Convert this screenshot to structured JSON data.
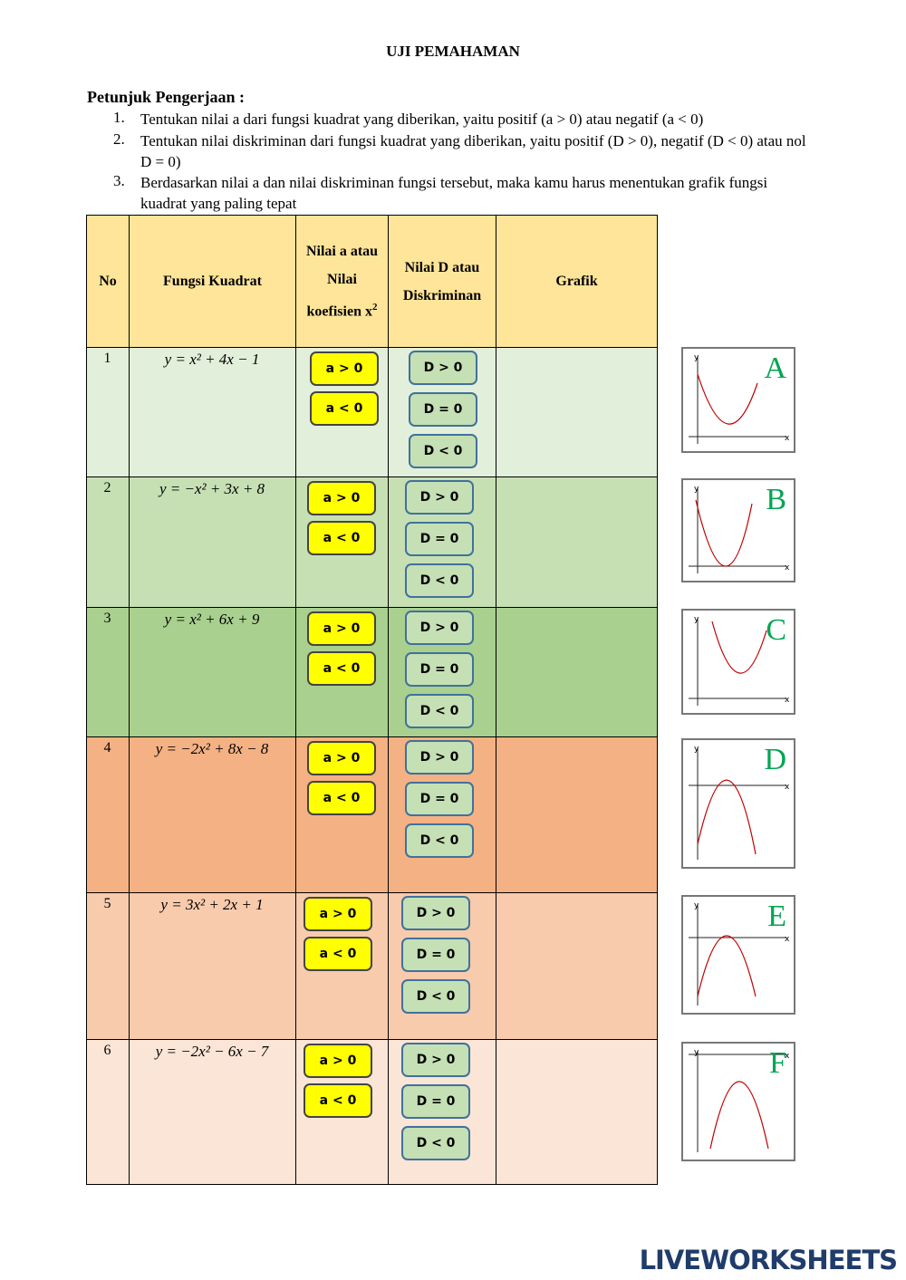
{
  "title": "UJI PEMAHAMAN",
  "instructions": {
    "heading": "Petunjuk Pengerjaan :",
    "items": [
      {
        "number": "1.",
        "text": "Tentukan nilai a dari fungsi kuadrat yang diberikan, yaitu positif (a > 0) atau negatif (a < 0)"
      },
      {
        "number": "2.",
        "text": "Tentukan nilai diskriminan dari fungsi kuadrat yang diberikan, yaitu positif (D > 0), negatif (D < 0) atau nol D = 0)"
      },
      {
        "number": "3.",
        "text": "Berdasarkan nilai a dan nilai diskriminan fungsi tersebut, maka kamu harus menentukan grafik fungsi kuadrat yang paling tepat"
      }
    ]
  },
  "table": {
    "headers": [
      "No",
      "Fungsi Kuadrat",
      {
        "text": "Nilai a atau Nilai koefisien x",
        "sup": "2"
      },
      "Nilai D atau Diskriminan",
      "Grafik"
    ],
    "rows": [
      {
        "no": "1",
        "function": "y = x² + 4x − 1"
      },
      {
        "no": "2",
        "function": "y = −x² + 3x + 8"
      },
      {
        "no": "3",
        "function": "y = x² + 6x + 9"
      },
      {
        "no": "4",
        "function": "y = −2x² + 8x − 8"
      },
      {
        "no": "5",
        "function": "y = 3x² + 2x + 1"
      },
      {
        "no": "6",
        "function": "y = −2x² − 6x − 7"
      }
    ]
  },
  "options": {
    "a": [
      "a > 0",
      "a < 0"
    ],
    "d": [
      "D > 0",
      "D = 0",
      "D < 0"
    ]
  },
  "graphs": {
    "letters": [
      "A",
      "B",
      "C",
      "D",
      "E",
      "F"
    ],
    "axis_x": "x",
    "axis_y": "y"
  },
  "brand": "LIVEWORKSHEETS"
}
